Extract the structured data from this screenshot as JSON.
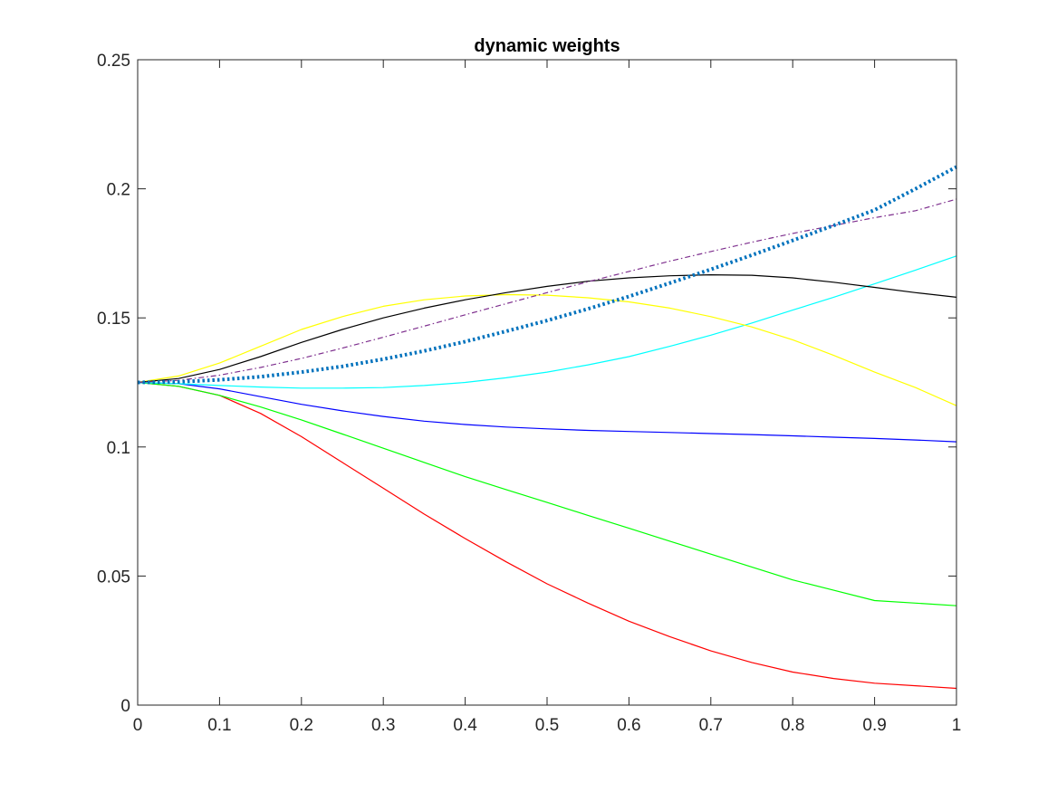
{
  "chart_data": {
    "type": "line",
    "title": "dynamic weights",
    "xlabel": "",
    "ylabel": "",
    "xlim": [
      0,
      1
    ],
    "ylim": [
      0,
      0.25
    ],
    "xticks": [
      0,
      0.1,
      0.2,
      0.3,
      0.4,
      0.5,
      0.6,
      0.7,
      0.8,
      0.9,
      1
    ],
    "xtick_labels": [
      "0",
      "0.1",
      "0.2",
      "0.3",
      "0.4",
      "0.5",
      "0.6",
      "0.7",
      "0.8",
      "0.9",
      "1"
    ],
    "yticks": [
      0,
      0.05,
      0.1,
      0.15,
      0.2,
      0.25
    ],
    "ytick_labels": [
      "0",
      "0.05",
      "0.1",
      "0.15",
      "0.2",
      "0.25"
    ],
    "grid": false,
    "legend": "none",
    "series": [
      {
        "color": "#ff0000",
        "style": "solid",
        "x": [
          0,
          0.05,
          0.1,
          0.15,
          0.2,
          0.25,
          0.3,
          0.35,
          0.4,
          0.45,
          0.5,
          0.55,
          0.6,
          0.65,
          0.7,
          0.75,
          0.8,
          0.85,
          0.9,
          0.95,
          1
        ],
        "y": [
          0.125,
          0.1235,
          0.12,
          0.113,
          0.104,
          0.094,
          0.084,
          0.074,
          0.0645,
          0.0555,
          0.047,
          0.0395,
          0.0325,
          0.0265,
          0.021,
          0.0165,
          0.0128,
          0.0103,
          0.0085,
          0.0075,
          0.0065
        ]
      },
      {
        "color": "#00ff00",
        "style": "solid",
        "x": [
          0,
          0.05,
          0.1,
          0.15,
          0.2,
          0.25,
          0.3,
          0.35,
          0.4,
          0.45,
          0.5,
          0.55,
          0.6,
          0.65,
          0.7,
          0.75,
          0.8,
          0.85,
          0.9,
          0.95,
          1
        ],
        "y": [
          0.125,
          0.1235,
          0.12,
          0.1155,
          0.1105,
          0.105,
          0.0995,
          0.094,
          0.0885,
          0.0835,
          0.0785,
          0.0735,
          0.0685,
          0.0635,
          0.0585,
          0.0535,
          0.0485,
          0.0445,
          0.0405,
          0.0395,
          0.0385
        ]
      },
      {
        "color": "#0000ff",
        "style": "solid",
        "x": [
          0,
          0.05,
          0.1,
          0.15,
          0.2,
          0.25,
          0.3,
          0.35,
          0.4,
          0.45,
          0.5,
          0.55,
          0.6,
          0.65,
          0.7,
          0.75,
          0.8,
          0.85,
          0.9,
          0.95,
          1
        ],
        "y": [
          0.125,
          0.1245,
          0.1225,
          0.1195,
          0.1165,
          0.114,
          0.1118,
          0.11,
          0.1087,
          0.1077,
          0.107,
          0.1064,
          0.106,
          0.1056,
          0.1052,
          0.1048,
          0.1043,
          0.1038,
          0.1033,
          0.1027,
          0.102
        ]
      },
      {
        "color": "#00ffff",
        "style": "solid",
        "x": [
          0,
          0.05,
          0.1,
          0.15,
          0.2,
          0.25,
          0.3,
          0.35,
          0.4,
          0.45,
          0.5,
          0.55,
          0.6,
          0.65,
          0.7,
          0.75,
          0.8,
          0.85,
          0.9,
          0.95,
          1
        ],
        "y": [
          0.125,
          0.1245,
          0.1238,
          0.1232,
          0.1228,
          0.1228,
          0.123,
          0.1238,
          0.125,
          0.1268,
          0.129,
          0.1318,
          0.135,
          0.139,
          0.1433,
          0.148,
          0.153,
          0.158,
          0.1632,
          0.1685,
          0.174
        ]
      },
      {
        "color": "#ffff00",
        "style": "solid",
        "x": [
          0,
          0.05,
          0.1,
          0.15,
          0.2,
          0.25,
          0.3,
          0.35,
          0.4,
          0.45,
          0.5,
          0.55,
          0.6,
          0.65,
          0.7,
          0.75,
          0.8,
          0.85,
          0.9,
          0.95,
          1
        ],
        "y": [
          0.125,
          0.1275,
          0.1325,
          0.139,
          0.1455,
          0.1505,
          0.1545,
          0.157,
          0.1585,
          0.159,
          0.1588,
          0.1578,
          0.1562,
          0.1538,
          0.1505,
          0.1465,
          0.1415,
          0.1355,
          0.129,
          0.123,
          0.116
        ]
      },
      {
        "color": "#000000",
        "style": "solid",
        "x": [
          0,
          0.05,
          0.1,
          0.15,
          0.2,
          0.25,
          0.3,
          0.35,
          0.4,
          0.45,
          0.5,
          0.55,
          0.6,
          0.65,
          0.7,
          0.75,
          0.8,
          0.85,
          0.9,
          0.95,
          1
        ],
        "y": [
          0.125,
          0.1265,
          0.13,
          0.135,
          0.1405,
          0.1455,
          0.15,
          0.1538,
          0.157,
          0.1598,
          0.1622,
          0.1642,
          0.1655,
          0.1663,
          0.1667,
          0.1665,
          0.1655,
          0.1638,
          0.1618,
          0.1598,
          0.158
        ]
      },
      {
        "color": "#7e2f8e",
        "style": "dashdot",
        "x": [
          0,
          0.05,
          0.1,
          0.15,
          0.2,
          0.25,
          0.3,
          0.35,
          0.4,
          0.45,
          0.5,
          0.55,
          0.6,
          0.65,
          0.7,
          0.75,
          0.8,
          0.85,
          0.9,
          0.95,
          1
        ],
        "y": [
          0.125,
          0.1258,
          0.1278,
          0.1308,
          0.1343,
          0.1383,
          0.1425,
          0.1468,
          0.1512,
          0.1555,
          0.1598,
          0.164,
          0.168,
          0.172,
          0.1757,
          0.1793,
          0.1827,
          0.1858,
          0.1888,
          0.1915,
          0.196
        ]
      },
      {
        "color": "#0072bd",
        "style": "dotted",
        "x": [
          0,
          0.05,
          0.1,
          0.15,
          0.2,
          0.25,
          0.3,
          0.35,
          0.4,
          0.45,
          0.5,
          0.55,
          0.6,
          0.65,
          0.7,
          0.75,
          0.8,
          0.85,
          0.9,
          0.95,
          1
        ],
        "y": [
          0.125,
          0.1252,
          0.126,
          0.1272,
          0.129,
          0.1312,
          0.134,
          0.1372,
          0.1408,
          0.1448,
          0.149,
          0.1535,
          0.1583,
          0.1635,
          0.1688,
          0.1743,
          0.18,
          0.1858,
          0.1918,
          0.2,
          0.2085
        ]
      }
    ]
  }
}
